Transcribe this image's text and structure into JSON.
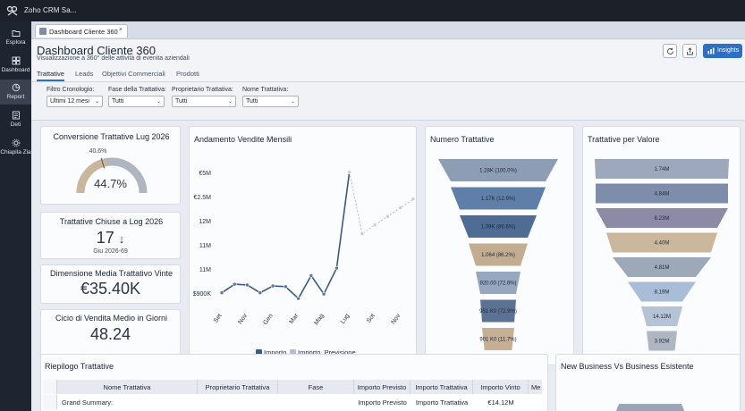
{
  "app": {
    "title": "Zoho CRM Sa..."
  },
  "nav": [
    {
      "label": "Esplora",
      "icon": "folder-icon"
    },
    {
      "label": "Dashboard",
      "icon": "dashboard-grid-icon"
    },
    {
      "label": "Report",
      "icon": "report-icon"
    },
    {
      "label": "Deti",
      "icon": "data-icon"
    },
    {
      "label": "Chiapila Zia",
      "icon": "settings-icon"
    }
  ],
  "tab": {
    "label": "Dashboard Cliente 360",
    "close": "×"
  },
  "header": {
    "title": "Dashboard Cliente 360",
    "subtitle": "Visualizzazione a 360° delle attività di evenita aziendali",
    "insights_label": "Insights"
  },
  "subtabs": [
    "Trattative",
    "Leads",
    "Objettivi Commerciali",
    "Prodotti"
  ],
  "filters": [
    {
      "label": "Filtro Cronologio:",
      "value": "Ultimi 12 mesi"
    },
    {
      "label": "Fase della Trattativa:",
      "value": "Tutti"
    },
    {
      "label": "Proprietario Trattativa:",
      "value": "Tutti"
    },
    {
      "label": "Nome Trattativa:",
      "value": "Tutti"
    }
  ],
  "kpis": {
    "conversion": {
      "title": "Conversione Trattative Lug 2026",
      "value": "44.7%",
      "marker": "40.6%",
      "fraction": 0.447
    },
    "closed": {
      "title": "Trattative Chiuse a Log 2026",
      "value": "17",
      "arrow": "↓",
      "sub": "Giu 2026-69"
    },
    "avg_size": {
      "title": "Dimensione Media Trattativo Vinte",
      "value": "€35.40K"
    },
    "cycle": {
      "title": "Cicio di Vendita Medio in Giorni",
      "value": "48.24"
    }
  },
  "sales_chart": {
    "title": "Andamento Vendite Mensili",
    "legend_actual": "Importo",
    "legend_forecast": "Importo, Previsione"
  },
  "funnel_deals": {
    "title": "Numero Trattative",
    "footer": "Conversion Sate: 71.7%"
  },
  "funnel_value": {
    "title": "Trattative per Valore"
  },
  "summary": {
    "title": "Riepilogo Trattative",
    "columns": [
      "Nome Trattativa",
      "Proprietario Trattativa",
      "Fase",
      "Importo Previsto",
      "Importo Trattativa",
      "Importo Vinto",
      "Me"
    ],
    "grand_label": "Grand Summary:",
    "grand_values": [
      "Importo Previsto",
      "Importo Trattativa",
      "€14.12M"
    ]
  },
  "newbiz": {
    "title": "New Business Vs Business Esistente"
  },
  "colors": {
    "accent": "#2f6fbf",
    "line": "#3d5a80",
    "forecast": "#b3bdcc",
    "gauge_fill": "#c8b79e",
    "gauge_track": "#aeb6c2"
  },
  "chart_data": [
    {
      "type": "line",
      "title": "Andamento Vendite Mensili",
      "categories": [
        "Set",
        "Nov",
        "Gen",
        "Mar",
        "Mag",
        "Lug",
        "Sot",
        "Nov"
      ],
      "y_ticks": [
        "$900K",
        "11M",
        "11M",
        "12M",
        "€2.5M",
        "€5M"
      ],
      "y_range": [
        0,
        5
      ],
      "series": [
        {
          "name": "Importo",
          "points": [
            {
              "x": 0,
              "y": 0.3
            },
            {
              "x": 0.5,
              "y": 0.65
            },
            {
              "x": 1,
              "y": 0.62
            },
            {
              "x": 1.5,
              "y": 0.3
            },
            {
              "x": 2,
              "y": 0.58
            },
            {
              "x": 2.5,
              "y": 0.55
            },
            {
              "x": 3,
              "y": 0.07
            },
            {
              "x": 3.5,
              "y": 1.0
            },
            {
              "x": 4,
              "y": 0.25
            },
            {
              "x": 4.5,
              "y": 1.3
            },
            {
              "x": 5,
              "y": 5.2
            }
          ]
        },
        {
          "name": "Importo, Previsione",
          "points": [
            {
              "x": 5,
              "y": 5.2
            },
            {
              "x": 5.5,
              "y": 2.7
            },
            {
              "x": 6,
              "y": 3.05
            },
            {
              "x": 6.5,
              "y": 3.4
            },
            {
              "x": 7,
              "y": 3.75
            },
            {
              "x": 7.5,
              "y": 4.1
            }
          ]
        }
      ]
    },
    {
      "type": "funnel",
      "title": "Numero Trattative",
      "stages": [
        {
          "label": "1.28K (100.0%)",
          "color": "#8d9db3"
        },
        {
          "label": "1.17K (12.9%)",
          "color": "#5f7ea8"
        },
        {
          "label": "1.09K (86.6%)",
          "color": "#4f6c95"
        },
        {
          "label": "1.064 (86.2%)",
          "color": "#c3ad90"
        },
        {
          "label": "920.00 (72.6%)",
          "color": "#97a7c0"
        },
        {
          "label": "951 K0 (72.9%)",
          "color": "#5b7293"
        },
        {
          "label": "901 K0 (11.7%)",
          "color": "#c5b096"
        }
      ]
    },
    {
      "type": "funnel",
      "title": "Trattative per Valore",
      "stages": [
        {
          "label": "1.74M",
          "color": "#9ea8bc"
        },
        {
          "label": "4.84M",
          "color": "#7e8eaa"
        },
        {
          "label": "6.23M",
          "color": "#8d8aa6"
        },
        {
          "label": "4.40M",
          "color": "#cbb89c"
        },
        {
          "label": "4.81M",
          "color": "#9da8b8"
        },
        {
          "label": "8.19M",
          "color": "#a9bdd6"
        },
        {
          "label": "14.12M",
          "color": "#b5c3d4"
        },
        {
          "label": "3.92M",
          "color": "#aeb6c2"
        }
      ]
    }
  ]
}
